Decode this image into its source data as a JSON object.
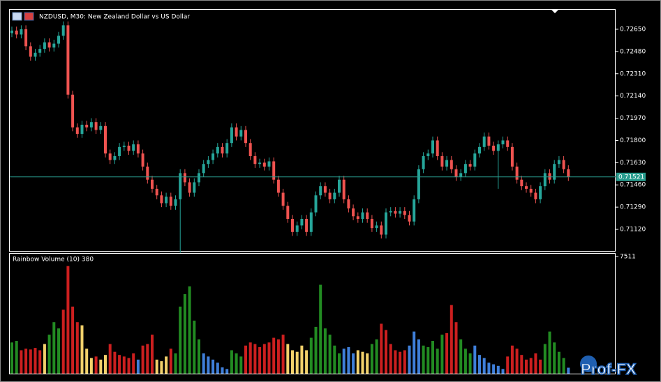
{
  "chart_data": [
    {
      "type": "candlestick",
      "title": "NZDUSD, M30:  New Zealand Dollar vs US Dollar",
      "up_color": "#26a69a",
      "down_color": "#ef5350",
      "ylim": [
        0.70955,
        0.72799
      ],
      "yticks": [
        {
          "value": 0.7265,
          "label": "0.72650"
        },
        {
          "value": 0.7248,
          "label": "0.72480"
        },
        {
          "value": 0.7231,
          "label": "0.72310"
        },
        {
          "value": 0.7214,
          "label": "0.72140"
        },
        {
          "value": 0.7197,
          "label": "0.71970"
        },
        {
          "value": 0.718,
          "label": "0.71800"
        },
        {
          "value": 0.7163,
          "label": "0.71630"
        },
        {
          "value": 0.7146,
          "label": "0.71460"
        },
        {
          "value": 0.7129,
          "label": "0.71290"
        },
        {
          "value": 0.7112,
          "label": "0.71120"
        }
      ],
      "last_price": 0.71521,
      "last_price_color": "#2a9d8f",
      "open": [
        0.7262,
        0.7264,
        0.7261,
        0.7265,
        0.7252,
        0.7244,
        0.7247,
        0.725,
        0.7255,
        0.7251,
        0.7254,
        0.726,
        0.7268,
        0.7215,
        0.719,
        0.7185,
        0.7192,
        0.719,
        0.7194,
        0.7188,
        0.7191,
        0.717,
        0.7165,
        0.7168,
        0.7175,
        0.7176,
        0.7172,
        0.7177,
        0.717,
        0.716,
        0.715,
        0.7143,
        0.7138,
        0.7132,
        0.7137,
        0.713,
        0.7135,
        0.7155,
        0.7148,
        0.714,
        0.7148,
        0.7155,
        0.7162,
        0.7165,
        0.717,
        0.7175,
        0.717,
        0.7178,
        0.719,
        0.7183,
        0.7188,
        0.7178,
        0.7168,
        0.7162,
        0.7163,
        0.716,
        0.7164,
        0.715,
        0.714,
        0.713,
        0.712,
        0.711,
        0.7115,
        0.712,
        0.711,
        0.7125,
        0.7138,
        0.7145,
        0.714,
        0.7135,
        0.714,
        0.715,
        0.7135,
        0.7128,
        0.7122,
        0.712,
        0.7125,
        0.712,
        0.7113,
        0.7115,
        0.7108,
        0.7125,
        0.7126,
        0.7124,
        0.7126,
        0.7123,
        0.7118,
        0.7135,
        0.7158,
        0.7168,
        0.717,
        0.718,
        0.7168,
        0.716,
        0.7165,
        0.7158,
        0.7152,
        0.7155,
        0.7162,
        0.716,
        0.717,
        0.7175,
        0.7183,
        0.7176,
        0.7172,
        0.7177,
        0.718,
        0.7175,
        0.716,
        0.715,
        0.7145,
        0.7143,
        0.714,
        0.7135,
        0.7145,
        0.7155,
        0.715,
        0.7162,
        0.7165,
        0.7158
      ],
      "high": [
        0.7267,
        0.7267,
        0.7268,
        0.7268,
        0.7255,
        0.725,
        0.7253,
        0.7258,
        0.7258,
        0.7257,
        0.7263,
        0.7271,
        0.7271,
        0.7218,
        0.7193,
        0.7195,
        0.7195,
        0.7197,
        0.7197,
        0.7194,
        0.7194,
        0.7173,
        0.7171,
        0.7178,
        0.7179,
        0.7179,
        0.718,
        0.718,
        0.7173,
        0.7163,
        0.7153,
        0.7146,
        0.7141,
        0.714,
        0.714,
        0.7138,
        0.7158,
        0.7158,
        0.7151,
        0.7151,
        0.7158,
        0.7165,
        0.7168,
        0.7173,
        0.7178,
        0.7178,
        0.7181,
        0.7193,
        0.7193,
        0.7191,
        0.7191,
        0.7181,
        0.7171,
        0.7166,
        0.7166,
        0.7167,
        0.7167,
        0.7153,
        0.7143,
        0.7133,
        0.7123,
        0.7118,
        0.7123,
        0.7123,
        0.7128,
        0.7141,
        0.7148,
        0.7148,
        0.7143,
        0.7143,
        0.7153,
        0.7153,
        0.7138,
        0.7131,
        0.7125,
        0.7128,
        0.7128,
        0.7123,
        0.7118,
        0.7118,
        0.7128,
        0.7129,
        0.7129,
        0.7129,
        0.7129,
        0.7126,
        0.7138,
        0.7161,
        0.7171,
        0.7173,
        0.7183,
        0.7183,
        0.7171,
        0.7168,
        0.7168,
        0.7161,
        0.7158,
        0.7165,
        0.7165,
        0.7173,
        0.7178,
        0.7186,
        0.7186,
        0.7179,
        0.718,
        0.7183,
        0.7183,
        0.7178,
        0.7163,
        0.7153,
        0.7148,
        0.7146,
        0.7143,
        0.7148,
        0.7158,
        0.7158,
        0.7165,
        0.7168,
        0.7168,
        0.7161
      ],
      "low": [
        0.7259,
        0.7258,
        0.7258,
        0.7249,
        0.7241,
        0.7241,
        0.7244,
        0.7247,
        0.7248,
        0.7248,
        0.7251,
        0.7257,
        0.7212,
        0.7187,
        0.7182,
        0.7182,
        0.7187,
        0.7187,
        0.7185,
        0.7185,
        0.7167,
        0.7162,
        0.7162,
        0.7165,
        0.7172,
        0.7169,
        0.7169,
        0.7167,
        0.7157,
        0.7147,
        0.714,
        0.7135,
        0.7129,
        0.7129,
        0.7127,
        0.7127,
        0.7094,
        0.7145,
        0.7137,
        0.7137,
        0.7145,
        0.7152,
        0.7159,
        0.7162,
        0.7167,
        0.7167,
        0.7167,
        0.7175,
        0.718,
        0.718,
        0.7175,
        0.7165,
        0.7159,
        0.7159,
        0.7157,
        0.7157,
        0.7147,
        0.7137,
        0.7127,
        0.7117,
        0.7107,
        0.7107,
        0.7112,
        0.7107,
        0.7107,
        0.7122,
        0.7135,
        0.7137,
        0.7132,
        0.7132,
        0.7137,
        0.7132,
        0.7125,
        0.7119,
        0.7117,
        0.7117,
        0.7117,
        0.711,
        0.711,
        0.7105,
        0.7105,
        0.7122,
        0.7121,
        0.7121,
        0.712,
        0.7115,
        0.7115,
        0.7132,
        0.7155,
        0.7165,
        0.7167,
        0.7165,
        0.7157,
        0.7157,
        0.7155,
        0.7149,
        0.7149,
        0.7152,
        0.7157,
        0.7157,
        0.7167,
        0.7172,
        0.7173,
        0.7169,
        0.7143,
        0.7174,
        0.7172,
        0.7157,
        0.7147,
        0.7142,
        0.714,
        0.7137,
        0.7132,
        0.7132,
        0.7142,
        0.7147,
        0.7147,
        0.7159,
        0.7155,
        0.7149
      ],
      "close": [
        0.7264,
        0.7261,
        0.7265,
        0.7252,
        0.7244,
        0.7247,
        0.725,
        0.7255,
        0.7251,
        0.7254,
        0.726,
        0.7268,
        0.7215,
        0.719,
        0.7185,
        0.7192,
        0.719,
        0.7194,
        0.7188,
        0.7191,
        0.717,
        0.7165,
        0.7168,
        0.7175,
        0.7176,
        0.7172,
        0.7177,
        0.717,
        0.716,
        0.715,
        0.7143,
        0.7138,
        0.7132,
        0.7137,
        0.713,
        0.7135,
        0.7155,
        0.7148,
        0.714,
        0.7148,
        0.7155,
        0.7162,
        0.7165,
        0.717,
        0.7175,
        0.717,
        0.7178,
        0.719,
        0.7183,
        0.7188,
        0.7178,
        0.7168,
        0.7162,
        0.7163,
        0.716,
        0.7164,
        0.715,
        0.714,
        0.713,
        0.712,
        0.711,
        0.7115,
        0.712,
        0.711,
        0.7125,
        0.7138,
        0.7145,
        0.714,
        0.7135,
        0.714,
        0.715,
        0.7135,
        0.7128,
        0.7122,
        0.712,
        0.7125,
        0.712,
        0.7113,
        0.7115,
        0.7108,
        0.7125,
        0.7126,
        0.7124,
        0.7126,
        0.7123,
        0.7118,
        0.7135,
        0.7158,
        0.7168,
        0.717,
        0.718,
        0.7168,
        0.716,
        0.7165,
        0.7158,
        0.7152,
        0.7155,
        0.7162,
        0.716,
        0.717,
        0.7175,
        0.7183,
        0.7176,
        0.7172,
        0.7177,
        0.718,
        0.7175,
        0.716,
        0.715,
        0.7145,
        0.7143,
        0.714,
        0.7135,
        0.7145,
        0.7155,
        0.715,
        0.7162,
        0.7165,
        0.7158,
        0.71521
      ]
    },
    {
      "type": "bar",
      "title": "Rainbow Volume (10) 380",
      "ylim": [
        0,
        7511
      ],
      "yticks": [
        7511
      ],
      "values": [
        2000,
        2100,
        1500,
        1600,
        1550,
        1650,
        1500,
        1900,
        2500,
        3300,
        2900,
        4100,
        6900,
        4300,
        3300,
        3100,
        1600,
        1000,
        1100,
        900,
        1200,
        1900,
        1400,
        1200,
        1100,
        1000,
        1300,
        900,
        1800,
        1900,
        2500,
        900,
        800,
        1100,
        1600,
        1300,
        4300,
        5100,
        5600,
        3400,
        2200,
        1300,
        1100,
        900,
        700,
        400,
        300,
        1500,
        1300,
        1100,
        1800,
        2000,
        1900,
        1700,
        1900,
        2000,
        2300,
        2200,
        2500,
        1900,
        1500,
        1400,
        1800,
        1500,
        2300,
        3000,
        5700,
        2900,
        2500,
        1800,
        1300,
        1600,
        1700,
        1300,
        1500,
        1400,
        1300,
        1900,
        2200,
        3200,
        2800,
        1900,
        1500,
        1400,
        1500,
        1800,
        2700,
        2200,
        1800,
        1700,
        2100,
        1600,
        2500,
        2600,
        4400,
        3300,
        2200,
        1600,
        1300,
        1800,
        1200,
        1000,
        700,
        600,
        500,
        300,
        1100,
        1800,
        1600,
        1200,
        900,
        1000,
        1300,
        900,
        1900,
        2700,
        2000,
        1400,
        1000,
        380
      ],
      "colors": [
        "#228b22",
        "#228b22",
        "#cc1f1f",
        "#cc1f1f",
        "#cc1f1f",
        "#cc1f1f",
        "#cc1f1f",
        "#f2d16b",
        "#228b22",
        "#228b22",
        "#228b22",
        "#cc1f1f",
        "#cc1f1f",
        "#cc1f1f",
        "#cc1f1f",
        "#f2d16b",
        "#f2d16b",
        "#f2d16b",
        "#cc1f1f",
        "#f2d16b",
        "#f2d16b",
        "#cc1f1f",
        "#cc1f1f",
        "#cc1f1f",
        "#cc1f1f",
        "#cc1f1f",
        "#cc1f1f",
        "#3f7fd9",
        "#cc1f1f",
        "#cc1f1f",
        "#cc1f1f",
        "#f2d16b",
        "#f2d16b",
        "#f2d16b",
        "#cc1f1f",
        "#228b22",
        "#228b22",
        "#228b22",
        "#228b22",
        "#228b22",
        "#228b22",
        "#3f7fd9",
        "#3f7fd9",
        "#3f7fd9",
        "#3f7fd9",
        "#3f7fd9",
        "#3f7fd9",
        "#228b22",
        "#228b22",
        "#228b22",
        "#cc1f1f",
        "#cc1f1f",
        "#cc1f1f",
        "#cc1f1f",
        "#cc1f1f",
        "#cc1f1f",
        "#cc1f1f",
        "#cc1f1f",
        "#cc1f1f",
        "#f2d16b",
        "#f2d16b",
        "#f2d16b",
        "#f2d16b",
        "#f2d16b",
        "#228b22",
        "#228b22",
        "#228b22",
        "#228b22",
        "#228b22",
        "#228b22",
        "#228b22",
        "#3f7fd9",
        "#3f7fd9",
        "#3f7fd9",
        "#f2d16b",
        "#f2d16b",
        "#f2d16b",
        "#228b22",
        "#228b22",
        "#cc1f1f",
        "#cc1f1f",
        "#cc1f1f",
        "#cc1f1f",
        "#cc1f1f",
        "#cc1f1f",
        "#3f7fd9",
        "#3f7fd9",
        "#3f7fd9",
        "#228b22",
        "#228b22",
        "#228b22",
        "#228b22",
        "#228b22",
        "#cc1f1f",
        "#cc1f1f",
        "#cc1f1f",
        "#228b22",
        "#228b22",
        "#228b22",
        "#3f7fd9",
        "#3f7fd9",
        "#3f7fd9",
        "#3f7fd9",
        "#3f7fd9",
        "#3f7fd9",
        "#3f7fd9",
        "#cc1f1f",
        "#cc1f1f",
        "#cc1f1f",
        "#cc1f1f",
        "#cc1f1f",
        "#cc1f1f",
        "#cc1f1f",
        "#cc1f1f",
        "#228b22",
        "#228b22",
        "#228b22",
        "#228b22",
        "#228b22",
        "#3f7fd9"
      ]
    }
  ],
  "watermark": "Prof-FX"
}
